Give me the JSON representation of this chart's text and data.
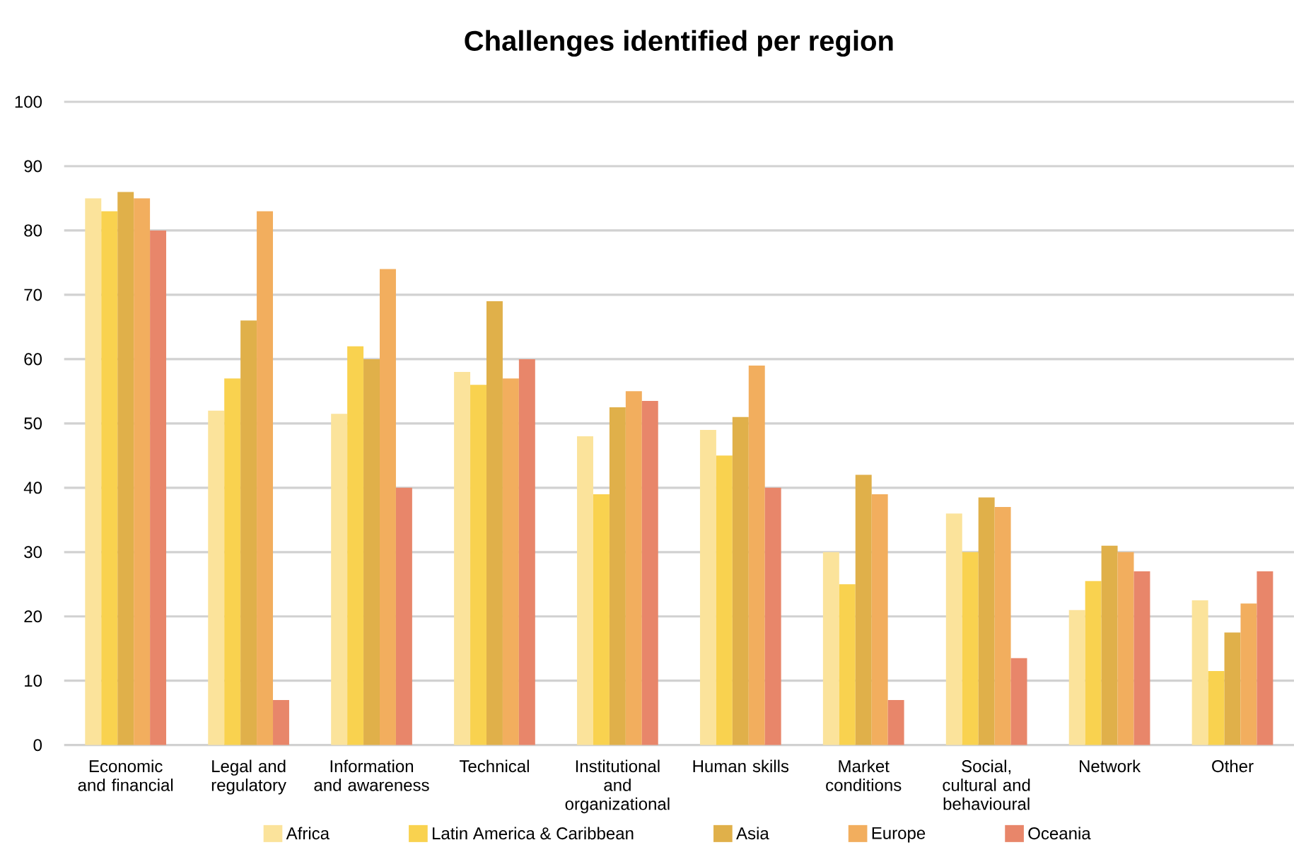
{
  "chart_data": {
    "type": "bar",
    "title": "Challenges identified per region",
    "categories": [
      "Economic and financial",
      "Legal and regulatory",
      "Information and awareness",
      "Technical",
      "Institutional and organizational",
      "Human skills",
      "Market conditions",
      "Social, cultural and behavioural",
      "Network",
      "Other"
    ],
    "series": [
      {
        "name": "Africa",
        "color": "#fbe39b",
        "values": [
          85,
          52,
          51.5,
          58,
          48,
          49,
          30,
          36,
          21,
          22.5
        ]
      },
      {
        "name": "Latin America & Caribbean",
        "color": "#f9d24f",
        "values": [
          83,
          57,
          62,
          56,
          39,
          45,
          25,
          30,
          25.5,
          11.5
        ]
      },
      {
        "name": "Asia",
        "color": "#e0b04a",
        "values": [
          86,
          66,
          60,
          69,
          52.5,
          51,
          42,
          38.5,
          31,
          17.5
        ]
      },
      {
        "name": "Europe",
        "color": "#f2ae5e",
        "values": [
          85,
          83,
          74,
          57,
          55,
          59,
          39,
          37,
          30,
          22
        ]
      },
      {
        "name": "Oceania",
        "color": "#e8866a",
        "values": [
          80,
          7,
          40,
          60,
          53.5,
          40,
          7,
          13.5,
          27,
          27
        ]
      }
    ],
    "ylim": [
      0,
      100
    ],
    "yticks": [
      0,
      10,
      20,
      30,
      40,
      50,
      60,
      70,
      80,
      90,
      100
    ],
    "grid": "y",
    "legend": "bottom"
  }
}
